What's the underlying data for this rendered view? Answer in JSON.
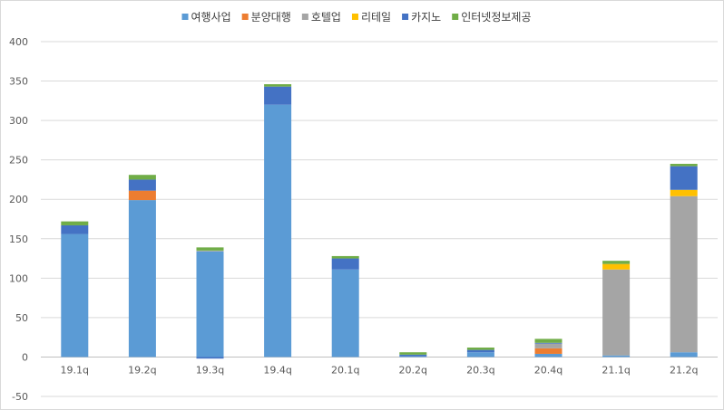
{
  "chart_data": {
    "type": "bar",
    "stacked": true,
    "categories": [
      "19.1q",
      "19.2q",
      "19.3q",
      "19.4q",
      "20.1q",
      "20.2q",
      "20.3q",
      "20.4q",
      "21.1q",
      "21.2q"
    ],
    "series": [
      {
        "name": "여행사업",
        "color": "#5B9BD5",
        "values": [
          156,
          199,
          134,
          320,
          111,
          1,
          6,
          4,
          2,
          6
        ]
      },
      {
        "name": "분양대행",
        "color": "#ED7D31",
        "values": [
          0,
          12,
          0,
          0,
          0,
          0,
          0,
          7,
          0,
          0
        ]
      },
      {
        "name": "호텔업",
        "color": "#A5A5A5",
        "values": [
          0,
          0,
          1,
          0,
          0,
          0,
          0,
          6,
          109,
          198
        ]
      },
      {
        "name": "리테일",
        "color": "#FFC000",
        "values": [
          0,
          0,
          0,
          0,
          0,
          0,
          0,
          0,
          7,
          8
        ]
      },
      {
        "name": "카지노",
        "color": "#4472C4",
        "values": [
          11,
          14,
          -2,
          23,
          14,
          2,
          3,
          1,
          0,
          30
        ]
      },
      {
        "name": "인터넷정보제공",
        "color": "#70AD47",
        "values": [
          5,
          6,
          4,
          3,
          3,
          3,
          3,
          5,
          4,
          3
        ]
      }
    ],
    "ylim": [
      -50,
      400
    ],
    "yticks": [
      -50,
      0,
      50,
      100,
      150,
      200,
      250,
      300,
      350,
      400
    ],
    "grid": true,
    "legend": "top",
    "title": "",
    "xlabel": "",
    "ylabel": ""
  }
}
